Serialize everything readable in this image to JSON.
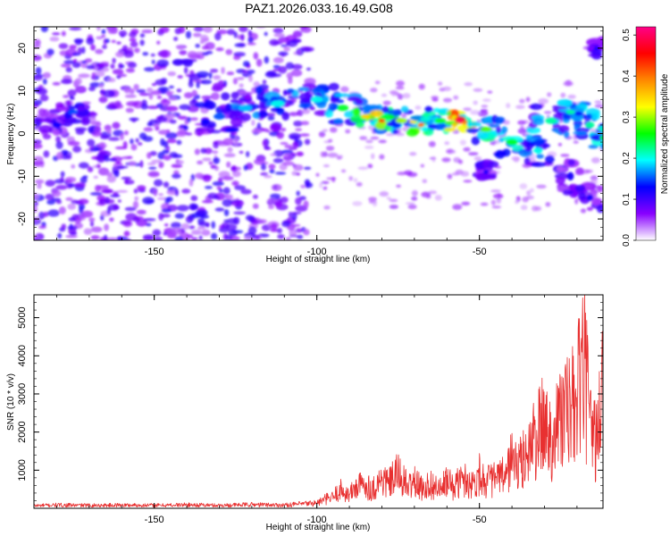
{
  "title": "PAZ1.2026.033.16.49.G08",
  "chart_data": [
    {
      "type": "heatmap",
      "name": "spectrogram",
      "xlabel": "Height of straight line (km)",
      "ylabel": "Frequency (Hz)",
      "xlim": [
        -187,
        -12
      ],
      "ylim": [
        -25,
        25
      ],
      "xticks": [
        -150,
        -100,
        -50
      ],
      "yticks": [
        -20,
        -10,
        0,
        10,
        20
      ],
      "colorbar": {
        "label": "Normalized spectral amplitude",
        "range": [
          0.0,
          0.52
        ],
        "ticks": [
          0.0,
          0.1,
          0.2,
          0.3,
          0.4,
          0.5
        ],
        "colors": [
          "#ffffff",
          "#8800ff",
          "#0000ff",
          "#00ffff",
          "#00ff00",
          "#ffff00",
          "#ff8800",
          "#ff0000",
          "#ff0088"
        ]
      },
      "features": [
        {
          "x": -180,
          "y": 2,
          "amp": 0.12,
          "sx": 4,
          "sy": 3
        },
        {
          "x": -175,
          "y": 5,
          "amp": 0.15,
          "sx": 4,
          "sy": 2
        },
        {
          "x": -130,
          "y": 4,
          "amp": 0.15,
          "sx": 5,
          "sy": 3
        },
        {
          "x": -122,
          "y": 6,
          "amp": 0.18,
          "sx": 6,
          "sy": 3
        },
        {
          "x": -112,
          "y": 7,
          "amp": 0.2,
          "sx": 6,
          "sy": 3
        },
        {
          "x": -100,
          "y": 8,
          "amp": 0.2,
          "sx": 5,
          "sy": 3
        },
        {
          "x": -92,
          "y": 6,
          "amp": 0.25,
          "sx": 5,
          "sy": 3
        },
        {
          "x": -85,
          "y": 4,
          "amp": 0.35,
          "sx": 4,
          "sy": 2
        },
        {
          "x": -80,
          "y": 3,
          "amp": 0.42,
          "sx": 3,
          "sy": 2
        },
        {
          "x": -74,
          "y": 3,
          "amp": 0.3,
          "sx": 5,
          "sy": 2.5
        },
        {
          "x": -68,
          "y": 2,
          "amp": 0.4,
          "sx": 3,
          "sy": 2
        },
        {
          "x": -62,
          "y": 3,
          "amp": 0.25,
          "sx": 5,
          "sy": 2.5
        },
        {
          "x": -56,
          "y": 3,
          "amp": 0.5,
          "sx": 3,
          "sy": 2
        },
        {
          "x": -48,
          "y": 1,
          "amp": 0.28,
          "sx": 5,
          "sy": 2.5
        },
        {
          "x": -40,
          "y": -2,
          "amp": 0.25,
          "sx": 5,
          "sy": 3
        },
        {
          "x": -32,
          "y": -4,
          "amp": 0.2,
          "sx": 4,
          "sy": 3
        },
        {
          "x": -28,
          "y": 3,
          "amp": 0.22,
          "sx": 5,
          "sy": 3
        },
        {
          "x": -22,
          "y": 5,
          "amp": 0.22,
          "sx": 4,
          "sy": 2
        },
        {
          "x": -16,
          "y": 2,
          "amp": 0.22,
          "sx": 4,
          "sy": 3
        },
        {
          "x": -12,
          "y": -1,
          "amp": 0.25,
          "sx": 3,
          "sy": 2
        },
        {
          "x": -22,
          "y": -10,
          "amp": 0.12,
          "sx": 3,
          "sy": 4
        },
        {
          "x": -16,
          "y": -15,
          "amp": 0.12,
          "sx": 3,
          "sy": 3
        },
        {
          "x": -14,
          "y": 20,
          "amp": 0.12,
          "sx": 2,
          "sy": 2
        },
        {
          "x": -48,
          "y": -9,
          "amp": 0.12,
          "sx": 2,
          "sy": 2
        }
      ]
    },
    {
      "type": "line",
      "name": "snr",
      "xlabel": "Height of straight line (km)",
      "ylabel": "SNR (10 * v/v)",
      "xlim": [
        -187,
        -12
      ],
      "ylim": [
        0,
        5600
      ],
      "xticks": [
        -150,
        -100,
        -50
      ],
      "yticks": [
        1000,
        2000,
        3000,
        4000,
        5000
      ],
      "color": "#e83030",
      "series": [
        {
          "name": "SNR",
          "x": [
            -187,
            -180,
            -170,
            -160,
            -150,
            -140,
            -130,
            -120,
            -110,
            -100,
            -97,
            -95,
            -93,
            -90,
            -88,
            -85,
            -83,
            -80,
            -78,
            -75,
            -72,
            -70,
            -68,
            -65,
            -62,
            -60,
            -58,
            -55,
            -52,
            -50,
            -48,
            -45,
            -42,
            -40,
            -38,
            -35,
            -32,
            -30,
            -28,
            -25,
            -22,
            -20,
            -18,
            -16,
            -14,
            -12
          ],
          "values": [
            100,
            120,
            110,
            120,
            110,
            130,
            110,
            140,
            120,
            200,
            350,
            400,
            700,
            500,
            800,
            900,
            700,
            1100,
            900,
            1300,
            800,
            1000,
            750,
            900,
            700,
            1000,
            800,
            1100,
            900,
            1300,
            1000,
            1100,
            1200,
            1900,
            1500,
            2200,
            2700,
            3200,
            2600,
            3500,
            3600,
            4000,
            5500,
            3100,
            2500,
            4600
          ]
        }
      ]
    }
  ]
}
